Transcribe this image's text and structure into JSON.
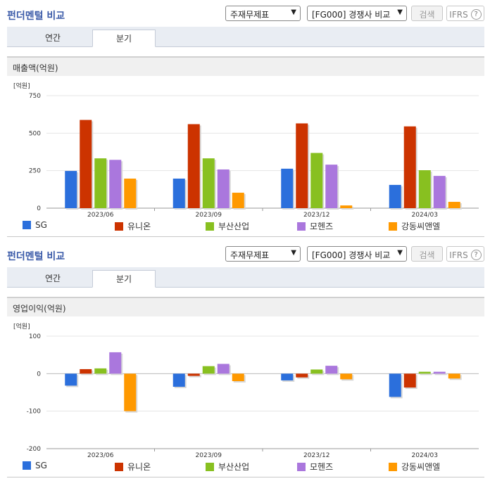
{
  "sections": [
    {
      "title": "펀더멘털 비교",
      "select_statement": "주재무제표",
      "select_compare": "[FG000] 경쟁사 비교",
      "search_button": "검색",
      "ifrs_label": "IFRS",
      "help_glyph": "?",
      "tabs": [
        {
          "label": "연간"
        },
        {
          "label": "분기"
        }
      ],
      "active_tab": 1,
      "chart_header": "매출액(억원)"
    },
    {
      "title": "펀더멘털 비교",
      "select_statement": "주재무제표",
      "select_compare": "[FG000] 경쟁사 비교",
      "search_button": "검색",
      "ifrs_label": "IFRS",
      "help_glyph": "?",
      "tabs": [
        {
          "label": "연간"
        },
        {
          "label": "분기"
        }
      ],
      "active_tab": 1,
      "chart_header": "영업이익(억원)"
    }
  ],
  "colors": {
    "SG": "#2b6fdc",
    "유니온": "#cc3300",
    "부산산업": "#88c020",
    "모헨즈": "#aa77dd",
    "강동씨앤엘": "#ff9900"
  },
  "chart_data": [
    {
      "type": "bar",
      "unit_label": "[억원]",
      "categories": [
        "2023/06",
        "2023/09",
        "2023/12",
        "2024/03"
      ],
      "ylim": [
        0,
        750
      ],
      "yticks": [
        "750",
        "500",
        "250",
        "0"
      ],
      "ytick_values": [
        750,
        500,
        250,
        0
      ],
      "series": [
        {
          "name": "SG",
          "values": [
            248,
            197,
            263,
            155
          ]
        },
        {
          "name": "유니온",
          "values": [
            588,
            560,
            565,
            545
          ]
        },
        {
          "name": "부산산업",
          "values": [
            332,
            332,
            368,
            253
          ]
        },
        {
          "name": "모헨즈",
          "values": [
            322,
            258,
            290,
            215
          ]
        },
        {
          "name": "강동씨앤엘",
          "values": [
            197,
            103,
            18,
            42
          ]
        }
      ]
    },
    {
      "type": "bar",
      "unit_label": "[억원]",
      "categories": [
        "2023/06",
        "2023/09",
        "2023/12",
        "2024/03"
      ],
      "ylim": [
        -200,
        100
      ],
      "yticks": [
        "100",
        "0",
        "-100",
        "-200"
      ],
      "ytick_values": [
        100,
        0,
        -100,
        -200
      ],
      "series": [
        {
          "name": "SG",
          "values": [
            -32,
            -35,
            -18,
            -62
          ]
        },
        {
          "name": "유니온",
          "values": [
            12,
            -6,
            -10,
            -37
          ]
        },
        {
          "name": "부산산업",
          "values": [
            14,
            20,
            11,
            5
          ]
        },
        {
          "name": "모헨즈",
          "values": [
            57,
            26,
            21,
            5
          ]
        },
        {
          "name": "강동씨앤엘",
          "values": [
            -100,
            -20,
            -15,
            -13
          ]
        }
      ]
    }
  ]
}
